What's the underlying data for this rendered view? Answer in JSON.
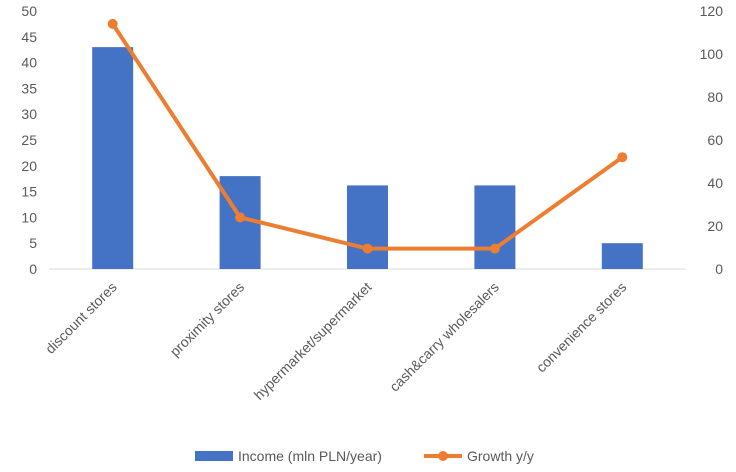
{
  "chart_data": {
    "type": "bar+line",
    "title": "",
    "categories": [
      "discount stores",
      "proximity stores",
      "hypermarket/supermarket",
      "cash&carry wholesalers",
      "convenience stores"
    ],
    "series": [
      {
        "name": "Income (mln PLN/year)",
        "type": "bar",
        "axis": "left",
        "color": "#4472C4",
        "values": [
          43,
          18,
          16.2,
          16.2,
          5
        ]
      },
      {
        "name": "Growth y/y",
        "type": "line",
        "axis": "right",
        "color": "#ED7D31",
        "values": [
          114,
          24,
          9.5,
          9.5,
          52
        ]
      }
    ],
    "y_left": {
      "min": 0,
      "max": 50,
      "ticks": [
        "0",
        "5",
        "10",
        "15",
        "20",
        "25",
        "30",
        "35",
        "40",
        "45",
        "50"
      ]
    },
    "y_right": {
      "min": 0,
      "max": 120,
      "ticks": [
        "0",
        "20",
        "40",
        "60",
        "80",
        "100",
        "120"
      ]
    },
    "grid": false,
    "legend_position": "bottom"
  }
}
